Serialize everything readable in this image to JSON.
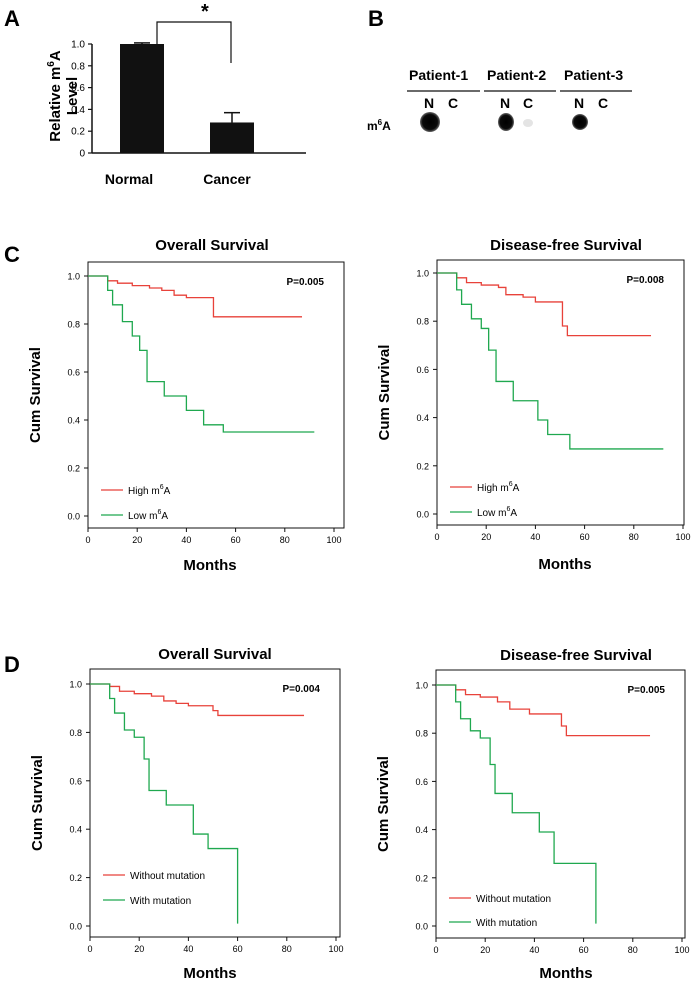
{
  "panel_labels": {
    "a": "A",
    "b": "B",
    "c": "C",
    "d": "D"
  },
  "bar_chart": {
    "ylabel_line1": "Relative m",
    "ylabel_sup": "6",
    "ylabel_line1_end": "A",
    "ylabel_line2": "Level",
    "significance": "*",
    "yticks": [
      "0",
      "0.2",
      "0.4",
      "0.6",
      "0.8",
      "1.0"
    ]
  },
  "dot_blot": {
    "patients": [
      "Patient-1",
      "Patient-2",
      "Patient-3"
    ],
    "lane_n": "N",
    "lane_c": "C",
    "row_label_main": "m",
    "row_label_sup": "6",
    "row_label_end": "A"
  },
  "km_common": {
    "ylabel": "Cum Survival",
    "xlabel": "Months",
    "xticks": [
      "0",
      "20",
      "40",
      "60",
      "80",
      "100"
    ],
    "yticks": [
      "0.0",
      "0.2",
      "0.4",
      "0.6",
      "0.8",
      "1.0"
    ]
  },
  "colors": {
    "red": "#e8423a",
    "green": "#1fa84f",
    "bar": "#111111"
  },
  "chart_data": [
    {
      "type": "bar",
      "panel": "A",
      "categories": [
        "Normal",
        "Cancer"
      ],
      "values": [
        1.0,
        0.28
      ],
      "errors": [
        0.01,
        0.09
      ],
      "ylim": [
        0,
        1.0
      ],
      "ylabel": "Relative m6A Level",
      "annotation": "*"
    },
    {
      "type": "line",
      "panel": "C-left",
      "title": "Overall Survival",
      "p_value": "P=0.005",
      "xlim": [
        0,
        100
      ],
      "ylim": [
        0,
        1.0
      ],
      "series": [
        {
          "name": "High m6A",
          "legend_main": "High m",
          "legend_sup": "6",
          "legend_end": "A",
          "color": "red",
          "steps": [
            [
              0,
              1.0
            ],
            [
              8,
              0.98
            ],
            [
              12,
              0.97
            ],
            [
              18,
              0.96
            ],
            [
              25,
              0.95
            ],
            [
              30,
              0.94
            ],
            [
              35,
              0.92
            ],
            [
              40,
              0.91
            ],
            [
              50,
              0.91
            ],
            [
              51,
              0.83
            ],
            [
              87,
              0.83
            ]
          ]
        },
        {
          "name": "Low m6A",
          "legend_main": "Low m",
          "legend_sup": "6",
          "legend_end": "A",
          "color": "green",
          "steps": [
            [
              0,
              1.0
            ],
            [
              8,
              0.94
            ],
            [
              10,
              0.88
            ],
            [
              14,
              0.81
            ],
            [
              18,
              0.75
            ],
            [
              21,
              0.69
            ],
            [
              24,
              0.56
            ],
            [
              31,
              0.5
            ],
            [
              40,
              0.44
            ],
            [
              47,
              0.38
            ],
            [
              55,
              0.35
            ],
            [
              92,
              0.35
            ]
          ]
        }
      ]
    },
    {
      "type": "line",
      "panel": "C-right",
      "title": "Disease-free Survival",
      "p_value": "P=0.008",
      "xlim": [
        0,
        100
      ],
      "ylim": [
        0,
        1.0
      ],
      "series": [
        {
          "name": "High m6A",
          "legend_main": "High m",
          "legend_sup": "6",
          "legend_end": "A",
          "color": "red",
          "steps": [
            [
              0,
              1.0
            ],
            [
              8,
              0.98
            ],
            [
              12,
              0.96
            ],
            [
              18,
              0.95
            ],
            [
              25,
              0.94
            ],
            [
              28,
              0.91
            ],
            [
              35,
              0.9
            ],
            [
              40,
              0.88
            ],
            [
              50,
              0.88
            ],
            [
              51,
              0.78
            ],
            [
              53,
              0.74
            ],
            [
              87,
              0.74
            ]
          ]
        },
        {
          "name": "Low m6A",
          "legend_main": "Low m",
          "legend_sup": "6",
          "legend_end": "A",
          "color": "green",
          "steps": [
            [
              0,
              1.0
            ],
            [
              8,
              0.93
            ],
            [
              10,
              0.87
            ],
            [
              14,
              0.81
            ],
            [
              18,
              0.77
            ],
            [
              21,
              0.68
            ],
            [
              24,
              0.55
            ],
            [
              31,
              0.47
            ],
            [
              41,
              0.39
            ],
            [
              45,
              0.33
            ],
            [
              54,
              0.27
            ],
            [
              92,
              0.27
            ]
          ]
        }
      ]
    },
    {
      "type": "line",
      "panel": "D-left",
      "title": "Overall Survival",
      "p_value": "P=0.004",
      "xlim": [
        0,
        100
      ],
      "ylim": [
        0,
        1.0
      ],
      "series": [
        {
          "name": "Without mutation",
          "legend_main": "Without mutation",
          "legend_sup": "",
          "legend_end": "",
          "color": "red",
          "steps": [
            [
              0,
              1.0
            ],
            [
              8,
              0.99
            ],
            [
              12,
              0.97
            ],
            [
              18,
              0.96
            ],
            [
              25,
              0.95
            ],
            [
              30,
              0.93
            ],
            [
              35,
              0.92
            ],
            [
              40,
              0.91
            ],
            [
              50,
              0.89
            ],
            [
              52,
              0.87
            ],
            [
              87,
              0.87
            ]
          ]
        },
        {
          "name": "With mutation",
          "legend_main": "With mutation",
          "legend_sup": "",
          "legend_end": "",
          "color": "green",
          "steps": [
            [
              0,
              1.0
            ],
            [
              8,
              0.94
            ],
            [
              10,
              0.88
            ],
            [
              14,
              0.81
            ],
            [
              18,
              0.78
            ],
            [
              22,
              0.69
            ],
            [
              24,
              0.56
            ],
            [
              31,
              0.5
            ],
            [
              42,
              0.38
            ],
            [
              48,
              0.32
            ],
            [
              60,
              0.32
            ],
            [
              60,
              0.01
            ]
          ]
        }
      ]
    },
    {
      "type": "line",
      "panel": "D-right",
      "title": "Disease-free Survival",
      "p_value": "P=0.005",
      "xlim": [
        0,
        100
      ],
      "ylim": [
        0,
        1.0
      ],
      "series": [
        {
          "name": "Without mutation",
          "legend_main": "Without mutation",
          "legend_sup": "",
          "legend_end": "",
          "color": "red",
          "steps": [
            [
              0,
              1.0
            ],
            [
              8,
              0.98
            ],
            [
              12,
              0.96
            ],
            [
              18,
              0.95
            ],
            [
              25,
              0.93
            ],
            [
              30,
              0.9
            ],
            [
              38,
              0.88
            ],
            [
              50,
              0.88
            ],
            [
              51,
              0.83
            ],
            [
              53,
              0.79
            ],
            [
              87,
              0.79
            ]
          ]
        },
        {
          "name": "With mutation",
          "legend_main": "With mutation",
          "legend_sup": "",
          "legend_end": "",
          "color": "green",
          "steps": [
            [
              0,
              1.0
            ],
            [
              8,
              0.93
            ],
            [
              10,
              0.86
            ],
            [
              14,
              0.81
            ],
            [
              18,
              0.78
            ],
            [
              22,
              0.67
            ],
            [
              24,
              0.55
            ],
            [
              31,
              0.47
            ],
            [
              42,
              0.39
            ],
            [
              48,
              0.26
            ],
            [
              65,
              0.26
            ],
            [
              65,
              0.01
            ]
          ]
        }
      ]
    }
  ]
}
